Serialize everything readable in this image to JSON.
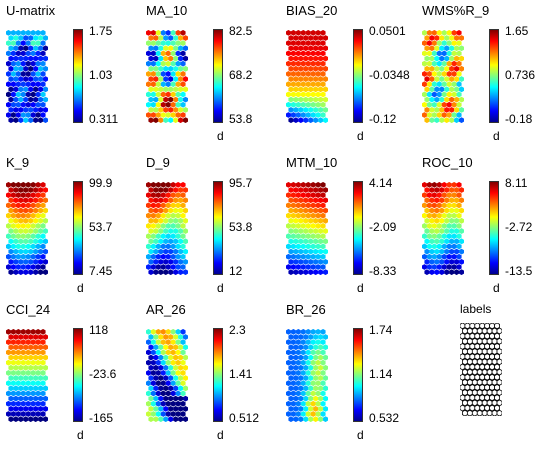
{
  "panels": [
    {
      "title": "U-matrix",
      "max": "1.75",
      "mid": "1.03",
      "min": "0.311",
      "unit": "",
      "pattern": "umatrix"
    },
    {
      "title": "MA_10",
      "max": "82.5",
      "mid": "68.2",
      "min": "53.8",
      "unit": "d",
      "pattern": "ma"
    },
    {
      "title": "BIAS_20",
      "max": "0.0501",
      "mid": "-0.0348",
      "min": "-0.12",
      "unit": "d",
      "pattern": "bias"
    },
    {
      "title": "WMS%R_9",
      "max": "1.65",
      "mid": "0.736",
      "min": "-0.18",
      "unit": "d",
      "pattern": "wms"
    },
    {
      "title": "K_9",
      "max": "99.9",
      "mid": "53.7",
      "min": "7.45",
      "unit": "d",
      "pattern": "kd"
    },
    {
      "title": "D_9",
      "max": "95.7",
      "mid": "53.8",
      "min": "12",
      "unit": "d",
      "pattern": "kd2"
    },
    {
      "title": "MTM_10",
      "max": "4.14",
      "mid": "-2.09",
      "min": "-8.33",
      "unit": "d",
      "pattern": "mtm"
    },
    {
      "title": "ROC_10",
      "max": "8.11",
      "mid": "-2.72",
      "min": "-13.5",
      "unit": "d",
      "pattern": "roc"
    },
    {
      "title": "CCI_24",
      "max": "118",
      "mid": "-23.6",
      "min": "-165",
      "unit": "d",
      "pattern": "cci"
    },
    {
      "title": "AR_26",
      "max": "2.3",
      "mid": "1.41",
      "min": "0.512",
      "unit": "d",
      "pattern": "ar"
    },
    {
      "title": "BR_26",
      "max": "1.74",
      "mid": "1.14",
      "min": "0.532",
      "unit": "d",
      "pattern": "br"
    }
  ],
  "labels_panel": {
    "title": "labels"
  }
}
